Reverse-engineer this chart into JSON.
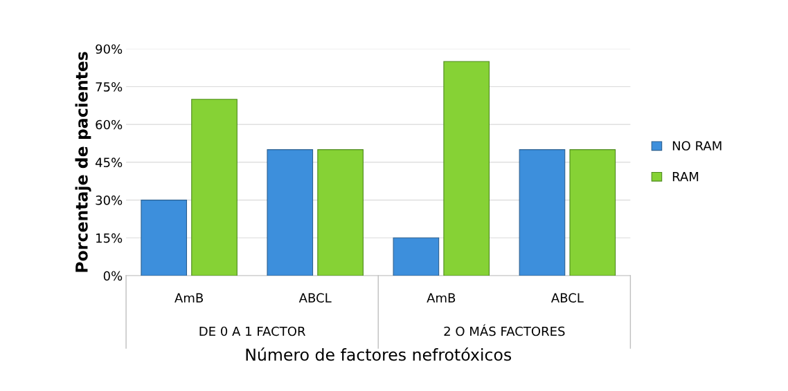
{
  "chart_data": {
    "type": "bar",
    "xlabel": "Número de factores nefrotóxicos",
    "ylabel": "Porcentaje de pacientes",
    "categories": [
      "AmB",
      "ABCL",
      "AmB",
      "ABCL"
    ],
    "series": [
      {
        "name": "NO RAM",
        "color": "#3d8fdc",
        "values": [
          30,
          50,
          15,
          50
        ]
      },
      {
        "name": "RAM",
        "color": "#86d235",
        "values": [
          70,
          50,
          85,
          50
        ]
      }
    ],
    "ylim": [
      0,
      90
    ],
    "yticks": [
      {
        "value": 0,
        "label": "0%"
      },
      {
        "value": 15,
        "label": "15%"
      },
      {
        "value": 30,
        "label": "30%"
      },
      {
        "value": 45,
        "label": "45%"
      },
      {
        "value": 60,
        "label": "60%"
      },
      {
        "value": 75,
        "label": "75%"
      },
      {
        "value": 90,
        "label": "90%"
      }
    ],
    "annotations": [
      "DE 0 A 1 FACTOR",
      "2 O MÁS FACTORES"
    ],
    "grid": "y",
    "legend": "right"
  }
}
